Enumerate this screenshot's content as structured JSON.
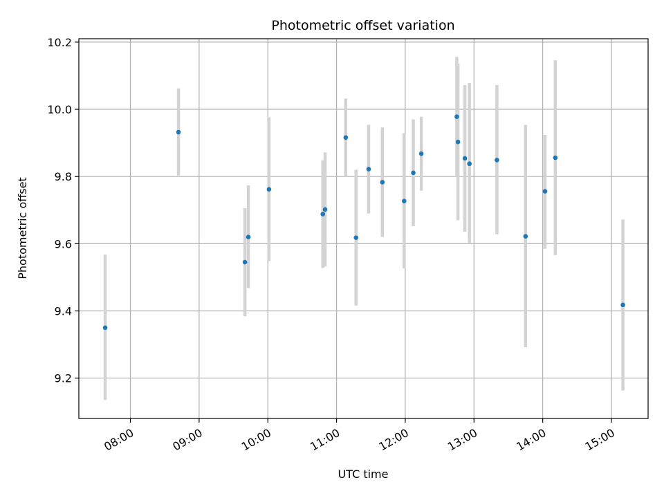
{
  "chart_data": {
    "type": "scatter",
    "title": "Photometric offset variation",
    "xlabel": "UTC time",
    "ylabel": "Photometric offset",
    "x_unit": "UTC time of day",
    "xlim": [
      "07:15",
      "15:32"
    ],
    "ylim": [
      9.08,
      10.21
    ],
    "grid": true,
    "x_ticks": [
      "08:00",
      "09:00",
      "10:00",
      "11:00",
      "12:00",
      "13:00",
      "14:00",
      "15:00"
    ],
    "y_ticks": [
      "9.2",
      "9.4",
      "9.6",
      "9.8",
      "10.0",
      "10.2"
    ],
    "marker_color": "#1f77b4",
    "errorbar_color": "#d3d3d3",
    "points": [
      {
        "x": "07:38",
        "y": 9.35,
        "yerr_low": 9.135,
        "yerr_high": 9.568
      },
      {
        "x": "08:42",
        "y": 9.932,
        "yerr_low": 9.803,
        "yerr_high": 10.062
      },
      {
        "x": "09:40",
        "y": 9.545,
        "yerr_low": 9.384,
        "yerr_high": 9.706
      },
      {
        "x": "09:43",
        "y": 9.62,
        "yerr_low": 9.468,
        "yerr_high": 9.774
      },
      {
        "x": "10:01",
        "y": 9.762,
        "yerr_low": 9.548,
        "yerr_high": 9.976
      },
      {
        "x": "10:48",
        "y": 9.688,
        "yerr_low": 9.528,
        "yerr_high": 9.848
      },
      {
        "x": "10:50",
        "y": 9.702,
        "yerr_low": 9.532,
        "yerr_high": 9.872
      },
      {
        "x": "11:08",
        "y": 9.916,
        "yerr_low": 9.8,
        "yerr_high": 10.032
      },
      {
        "x": "11:17",
        "y": 9.618,
        "yerr_low": 9.416,
        "yerr_high": 9.82
      },
      {
        "x": "11:28",
        "y": 9.822,
        "yerr_low": 9.69,
        "yerr_high": 9.954
      },
      {
        "x": "11:40",
        "y": 9.783,
        "yerr_low": 9.62,
        "yerr_high": 9.946
      },
      {
        "x": "11:59",
        "y": 9.727,
        "yerr_low": 9.527,
        "yerr_high": 9.929
      },
      {
        "x": "12:07",
        "y": 9.811,
        "yerr_low": 9.652,
        "yerr_high": 9.97
      },
      {
        "x": "12:14",
        "y": 9.868,
        "yerr_low": 9.758,
        "yerr_high": 9.978
      },
      {
        "x": "12:45",
        "y": 9.978,
        "yerr_low": 9.8,
        "yerr_high": 10.156
      },
      {
        "x": "12:46",
        "y": 9.903,
        "yerr_low": 9.67,
        "yerr_high": 10.136
      },
      {
        "x": "12:52",
        "y": 9.854,
        "yerr_low": 9.636,
        "yerr_high": 10.072
      },
      {
        "x": "12:56",
        "y": 9.838,
        "yerr_low": 9.6,
        "yerr_high": 10.078
      },
      {
        "x": "13:20",
        "y": 9.849,
        "yerr_low": 9.628,
        "yerr_high": 10.072
      },
      {
        "x": "13:45",
        "y": 9.622,
        "yerr_low": 9.292,
        "yerr_high": 9.954
      },
      {
        "x": "14:02",
        "y": 9.756,
        "yerr_low": 9.585,
        "yerr_high": 9.924
      },
      {
        "x": "14:11",
        "y": 9.856,
        "yerr_low": 9.566,
        "yerr_high": 10.146
      },
      {
        "x": "15:10",
        "y": 9.418,
        "yerr_low": 9.163,
        "yerr_high": 9.672
      }
    ]
  }
}
